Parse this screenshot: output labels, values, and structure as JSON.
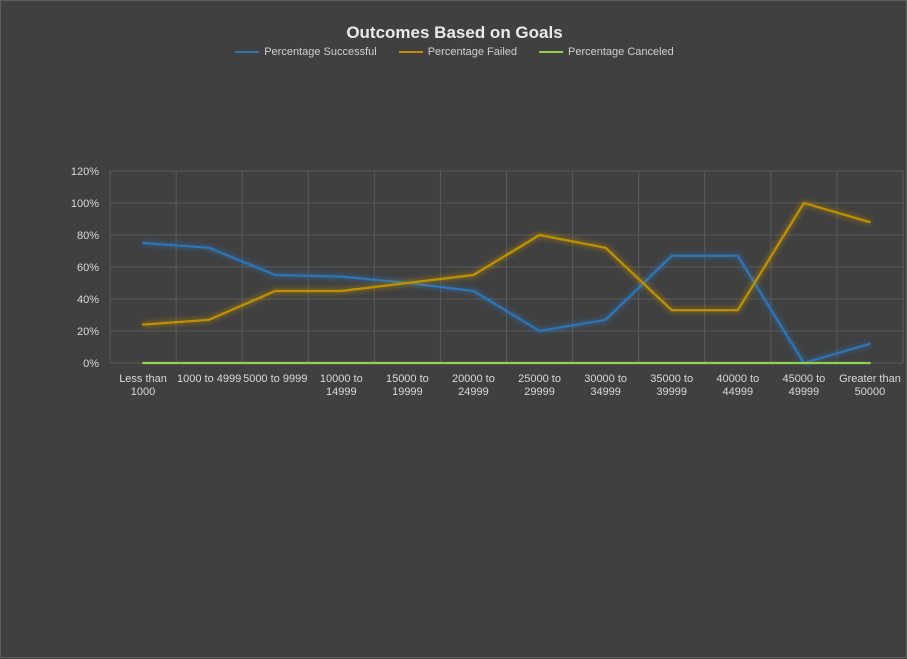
{
  "chart_data": {
    "type": "line",
    "title": "Outcomes Based on Goals",
    "categories": [
      [
        "Less than",
        "1000"
      ],
      [
        "1000 to 4999"
      ],
      [
        "5000 to 9999"
      ],
      [
        "10000 to",
        "14999"
      ],
      [
        "15000 to",
        "19999"
      ],
      [
        "20000 to",
        "24999"
      ],
      [
        "25000 to",
        "29999"
      ],
      [
        "30000 to",
        "34999"
      ],
      [
        "35000 to",
        "39999"
      ],
      [
        "40000 to",
        "44999"
      ],
      [
        "45000 to",
        "49999"
      ],
      [
        "Greater than",
        "50000"
      ]
    ],
    "series": [
      {
        "name": "Percentage Successful",
        "color": "#2e75b6",
        "values": [
          75,
          72,
          55,
          54,
          50,
          45,
          20,
          27,
          67,
          67,
          0,
          12
        ]
      },
      {
        "name": "Percentage Failed",
        "color": "#bf9000",
        "values": [
          24,
          27,
          45,
          45,
          50,
          55,
          80,
          72,
          33,
          33,
          100,
          88
        ]
      },
      {
        "name": "Percentage Canceled",
        "color": "#92d050",
        "values": [
          0,
          0,
          0,
          0,
          0,
          0,
          0,
          0,
          0,
          0,
          0,
          0
        ]
      }
    ],
    "yticks": [
      "0%",
      "20%",
      "40%",
      "60%",
      "80%",
      "100%",
      "120%"
    ],
    "ylim": [
      0,
      120
    ],
    "grid": true,
    "legend_position": "top"
  }
}
